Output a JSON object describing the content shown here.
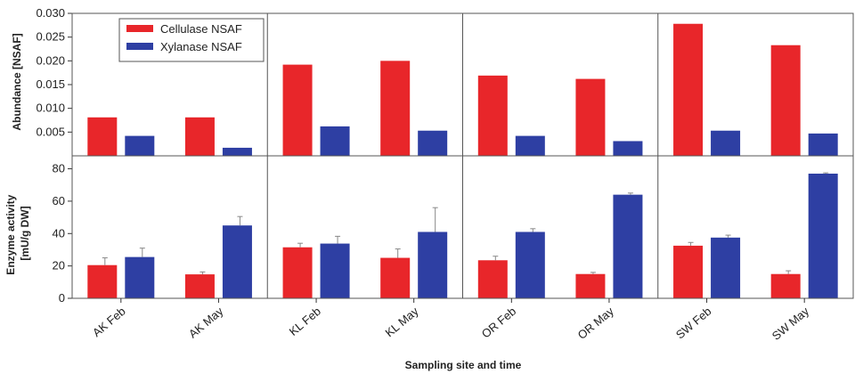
{
  "chart_data": {
    "type": "bar",
    "categories": [
      "AK Feb",
      "AK May",
      "KL Feb",
      "KL May",
      "OR Feb",
      "OR May",
      "SW Feb",
      "SW May"
    ],
    "xlabel": "Sampling site and time",
    "legend_placement": "top-left",
    "colors": {
      "cellulase": "#e8262a",
      "xylanase": "#2e3fa3"
    },
    "panels": [
      {
        "id": "abundance",
        "ylabel": "Abundance [NSAF]",
        "ylim": [
          0,
          0.03
        ],
        "yticks": [
          "0.005",
          "0.010",
          "0.015",
          "0.020",
          "0.025",
          "0.030"
        ],
        "series": [
          {
            "name": "Cellulase NSAF",
            "values": [
              0.0081,
              0.0081,
              0.0192,
              0.02,
              0.0169,
              0.0162,
              0.0278,
              0.0233
            ]
          },
          {
            "name": "Xylanase NSAF",
            "values": [
              0.0042,
              0.0017,
              0.0062,
              0.0053,
              0.0042,
              0.0031,
              0.0053,
              0.0047
            ]
          }
        ]
      },
      {
        "id": "activity",
        "ylabel_lines": [
          "Enzyme activity",
          "[mU/g DW]"
        ],
        "ylim": [
          0,
          88
        ],
        "yticks": [
          "0",
          "20",
          "40",
          "60",
          "80"
        ],
        "series": [
          {
            "values": [
              20.5,
              14.8,
              31.5,
              25.0,
              23.5,
              15.0,
              32.5,
              15.0
            ],
            "error": [
              4.5,
              1.5,
              2.5,
              5.5,
              2.5,
              1.0,
              2.0,
              2.0
            ]
          },
          {
            "values": [
              25.5,
              45.0,
              33.8,
              41.0,
              41.0,
              64.0,
              37.5,
              77.0
            ],
            "error": [
              5.5,
              5.5,
              4.5,
              15.0,
              2.0,
              1.0,
              1.5,
              0.5
            ]
          }
        ]
      }
    ]
  }
}
